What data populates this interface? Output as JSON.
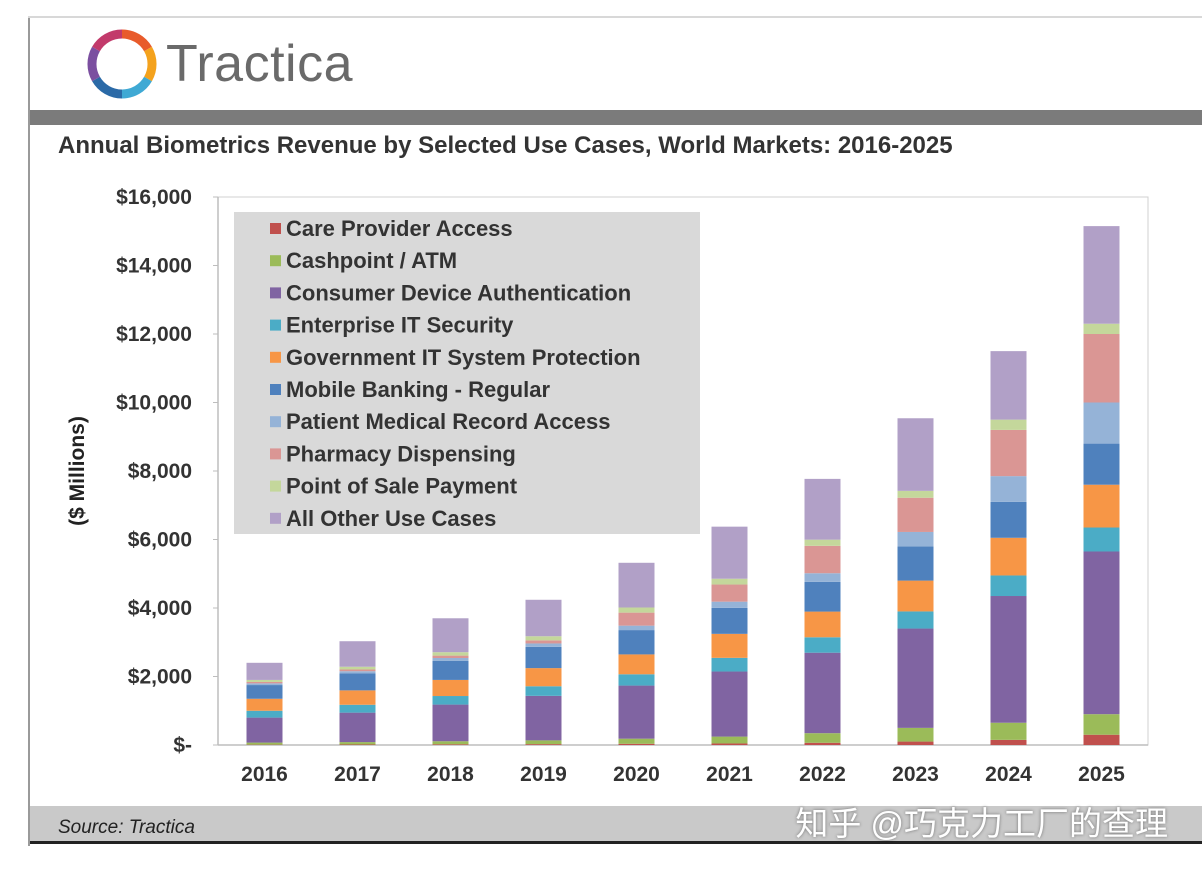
{
  "brand": {
    "name": "Tractica",
    "logo_colors": [
      "#e85b2b",
      "#f4a21d",
      "#3fa9d4",
      "#2b6aa7",
      "#7b4fa0",
      "#c23a6b"
    ]
  },
  "source": "Source: Tractica",
  "watermark": "知乎 @巧克力工厂的查理",
  "chart_data": {
    "type": "bar",
    "stacked": true,
    "title": "Annual Biometrics Revenue by Selected Use Cases, World Markets: 2016-2025",
    "ylabel": "($ Millions)",
    "xlabel": "",
    "ylim": [
      0,
      16000
    ],
    "yticks": [
      0,
      2000,
      4000,
      6000,
      8000,
      10000,
      12000,
      14000,
      16000
    ],
    "ytick_labels": [
      "$-",
      "$2,000",
      "$4,000",
      "$6,000",
      "$8,000",
      "$10,000",
      "$12,000",
      "$14,000",
      "$16,000"
    ],
    "grid": false,
    "legend_position": "top-left",
    "categories": [
      "2016",
      "2017",
      "2018",
      "2019",
      "2020",
      "2021",
      "2022",
      "2023",
      "2024",
      "2025"
    ],
    "series": [
      {
        "name": "Care Provider Access",
        "color": "#c0504d",
        "values": [
          10,
          15,
          20,
          25,
          35,
          45,
          65,
          100,
          150,
          300
        ]
      },
      {
        "name": "Cashpoint / ATM",
        "color": "#9bbb59",
        "values": [
          60,
          70,
          90,
          110,
          150,
          200,
          280,
          400,
          500,
          600
        ]
      },
      {
        "name": "Consumer Device Authentication",
        "color": "#8064a2",
        "values": [
          730,
          860,
          1070,
          1300,
          1550,
          1900,
          2350,
          2900,
          3700,
          4750
        ]
      },
      {
        "name": "Enterprise IT Security",
        "color": "#4bacc6",
        "values": [
          200,
          230,
          250,
          280,
          330,
          400,
          450,
          500,
          600,
          700
        ]
      },
      {
        "name": "Government IT System Protection",
        "color": "#f79646",
        "values": [
          350,
          420,
          470,
          530,
          580,
          700,
          750,
          900,
          1100,
          1250
        ]
      },
      {
        "name": "Mobile Banking - Regular",
        "color": "#4f81bd",
        "values": [
          400,
          500,
          560,
          620,
          710,
          760,
          870,
          1000,
          1050,
          1200
        ]
      },
      {
        "name": "Patient Medical Record Access",
        "color": "#95b3d7",
        "values": [
          50,
          60,
          80,
          100,
          130,
          180,
          250,
          420,
          750,
          1200
        ]
      },
      {
        "name": "Pharmacy Dispensing",
        "color": "#da9694",
        "values": [
          40,
          50,
          70,
          90,
          380,
          500,
          800,
          1000,
          1350,
          2000
        ]
      },
      {
        "name": "Point of Sale Payment",
        "color": "#c4d79b",
        "values": [
          60,
          80,
          100,
          120,
          150,
          170,
          180,
          200,
          300,
          300
        ]
      },
      {
        "name": "All Other Use Cases",
        "color": "#b1a0c7",
        "values": [
          500,
          745,
          990,
          1065,
          1305,
          1520,
          1775,
          2120,
          2000,
          2850
        ]
      }
    ]
  }
}
